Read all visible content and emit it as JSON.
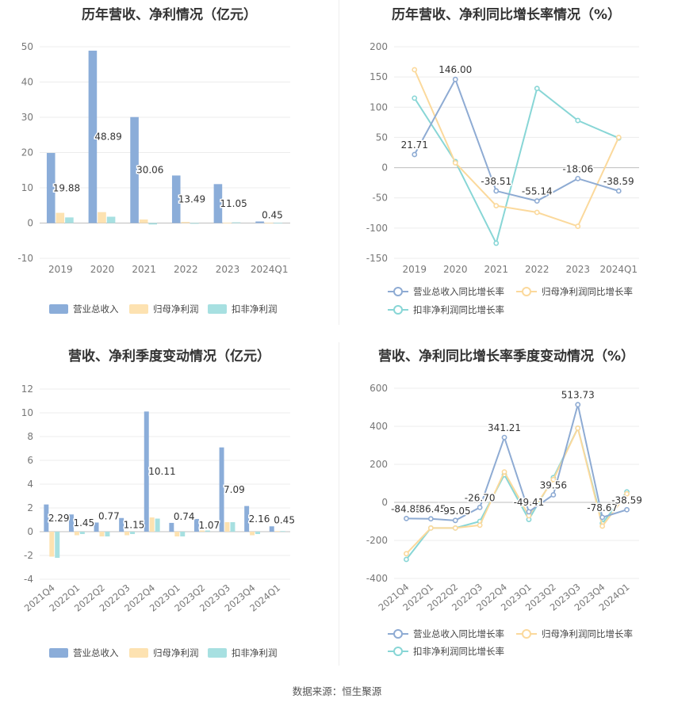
{
  "source": "数据来源：恒生聚源",
  "colors": {
    "revenue": "#8badd9",
    "netprofit": "#fde2b1",
    "deducted": "#a7e0e1",
    "rev_line": "#8eabd3",
    "np_line": "#fbd99c",
    "dd_line": "#88d6d6"
  },
  "chart_data": [
    {
      "id": "annual-bar",
      "type": "bar",
      "title": "历年营收、净利情况（亿元）",
      "categories": [
        "2019",
        "2020",
        "2021",
        "2022",
        "2023",
        "2024Q1"
      ],
      "ylim": [
        -10,
        50
      ],
      "yticks": [
        -10,
        0,
        10,
        20,
        30,
        40,
        50
      ],
      "series": [
        {
          "name": "营业总收入",
          "values": [
            19.88,
            48.89,
            30.06,
            13.49,
            11.05,
            0.45
          ]
        },
        {
          "name": "归母净利润",
          "values": [
            2.9,
            3.1,
            1.0,
            0.3,
            0.1,
            0.05
          ]
        },
        {
          "name": "扣非净利润",
          "values": [
            1.6,
            1.8,
            -0.4,
            -0.2,
            0.2,
            0.05
          ]
        }
      ],
      "labels": [
        "19.88",
        "48.89",
        "30.06",
        "13.49",
        "11.05",
        "0.45"
      ]
    },
    {
      "id": "annual-line",
      "type": "line",
      "title": "历年营收、净利同比增长率情况（%）",
      "categories": [
        "2019",
        "2020",
        "2021",
        "2022",
        "2023",
        "2024Q1"
      ],
      "ylim": [
        -150,
        200
      ],
      "yticks": [
        -150,
        -100,
        -50,
        0,
        50,
        100,
        150,
        200
      ],
      "series": [
        {
          "name": "营业总收入同比增长率",
          "values": [
            21.71,
            146.0,
            -38.51,
            -55.14,
            -18.06,
            -38.59
          ]
        },
        {
          "name": "归母净利润同比增长率",
          "values": [
            162,
            8,
            -63,
            -74,
            -97,
            50
          ]
        },
        {
          "name": "扣非净利润同比增长率",
          "values": [
            115,
            10,
            -125,
            131,
            78,
            49
          ]
        }
      ],
      "labels": [
        "21.71",
        "146.00",
        "-38.51",
        "-55.14",
        "-18.06",
        "-38.59"
      ]
    },
    {
      "id": "quarter-bar",
      "type": "bar",
      "title": "营收、净利季度变动情况（亿元）",
      "categories": [
        "2021Q4",
        "2022Q1",
        "2022Q2",
        "2022Q3",
        "2022Q4",
        "2023Q1",
        "2023Q2",
        "2023Q3",
        "2023Q4",
        "2024Q1"
      ],
      "ylim": [
        -4,
        12
      ],
      "yticks": [
        -4,
        -2,
        0,
        2,
        4,
        6,
        8,
        10,
        12
      ],
      "series": [
        {
          "name": "营业总收入",
          "values": [
            2.29,
            1.45,
            0.77,
            1.15,
            10.11,
            0.74,
            1.07,
            7.09,
            2.16,
            0.45
          ]
        },
        {
          "name": "归母净利润",
          "values": [
            -2.1,
            -0.3,
            -0.4,
            -0.3,
            1.2,
            -0.4,
            0.1,
            0.8,
            -0.3,
            0.05
          ]
        },
        {
          "name": "扣非净利润",
          "values": [
            -2.2,
            -0.2,
            -0.4,
            -0.2,
            1.1,
            -0.4,
            0.1,
            0.8,
            -0.2,
            0.05
          ]
        }
      ],
      "labels": [
        "2.29",
        "1.45",
        "0.77",
        "1.15",
        "10.11",
        "0.74",
        "1.07",
        "7.09",
        "2.16",
        "0.45"
      ]
    },
    {
      "id": "quarter-line",
      "type": "line",
      "title": "营收、净利同比增长率季度变动情况（%）",
      "categories": [
        "2021Q4",
        "2022Q1",
        "2022Q2",
        "2022Q3",
        "2022Q4",
        "2023Q1",
        "2023Q2",
        "2023Q3",
        "2023Q4",
        "2024Q1"
      ],
      "ylim": [
        -400,
        600
      ],
      "yticks": [
        -400,
        -200,
        0,
        200,
        400,
        600
      ],
      "series": [
        {
          "name": "营业总收入同比增长率",
          "values": [
            -84.85,
            -86.45,
            -95.05,
            -26.7,
            341.21,
            -49.41,
            39.56,
            513.73,
            -78.67,
            -38.59
          ]
        },
        {
          "name": "归母净利润同比增长率",
          "values": [
            -270,
            -135,
            -135,
            -120,
            160,
            -70,
            120,
            390,
            -125,
            45
          ]
        },
        {
          "name": "扣非净利润同比增长率",
          "values": [
            -300,
            -135,
            -135,
            -100,
            145,
            -90,
            130,
            390,
            -110,
            55
          ]
        }
      ],
      "labels": [
        "-84.85",
        "-86.45",
        "-95.05",
        "-26.70",
        "341.21",
        "-49.41",
        "39.56",
        "513.73",
        "-78.67",
        "-38.59"
      ]
    }
  ]
}
